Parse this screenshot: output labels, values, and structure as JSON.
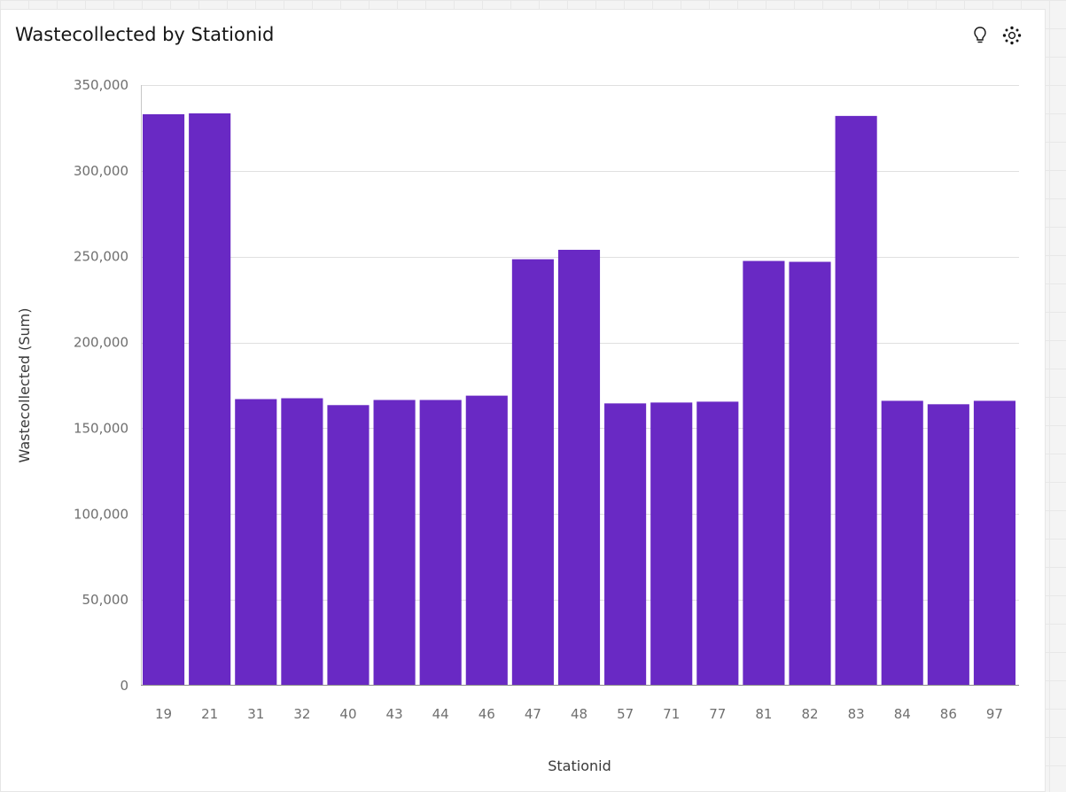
{
  "widget": {
    "title": "Wastecollected by Stationid",
    "toolbar": {
      "insights_icon": "lightbulb-icon",
      "visualization_icon": "dots-cluster-icon"
    }
  },
  "chart_data": {
    "type": "bar",
    "title": "Wastecollected by Stationid",
    "xlabel": "Stationid",
    "ylabel": "Wastecollected (Sum)",
    "categories": [
      "19",
      "21",
      "31",
      "32",
      "40",
      "43",
      "44",
      "46",
      "47",
      "48",
      "57",
      "71",
      "77",
      "81",
      "82",
      "83",
      "84",
      "86",
      "97"
    ],
    "values": [
      333000,
      333500,
      167000,
      167500,
      163500,
      166500,
      166500,
      169000,
      248500,
      254000,
      164500,
      165000,
      165500,
      247500,
      247000,
      332000,
      166000,
      164000,
      166000
    ],
    "ylim": [
      0,
      350000
    ],
    "yticks": [
      0,
      50000,
      100000,
      150000,
      200000,
      250000,
      300000,
      350000
    ],
    "ytick_labels": [
      "0",
      "50,000",
      "100,000",
      "150,000",
      "200,000",
      "250,000",
      "300,000",
      "350,000"
    ],
    "grid": true,
    "bar_color": "#6929c4",
    "grid_color": "#e0e0e0"
  }
}
